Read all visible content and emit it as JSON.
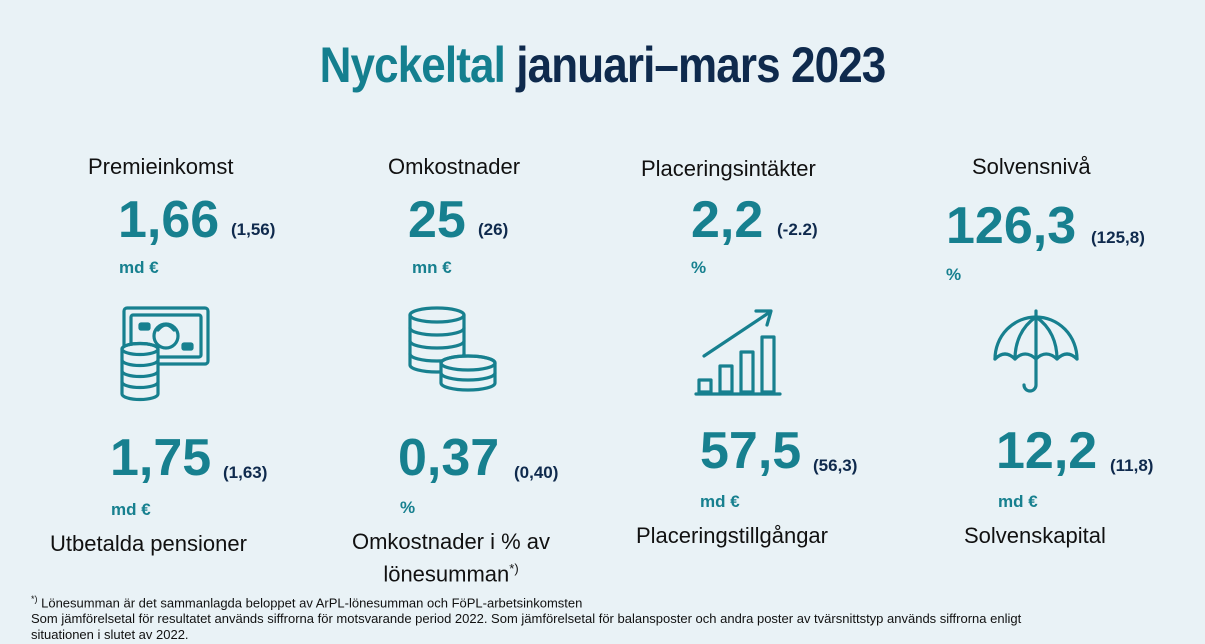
{
  "title": {
    "part1": "Nyckeltal",
    "part2": "januari–mars 2023"
  },
  "top_metrics": [
    {
      "label": "Premieinkomst",
      "value": "1,66",
      "comparison": "(1,56)",
      "unit": "md €"
    },
    {
      "label": "Omkostnader",
      "value": "25",
      "comparison": "(26)",
      "unit": "mn €"
    },
    {
      "label": "Placeringsintäkter",
      "value": "2,2",
      "comparison": "(-2.2)",
      "unit": "%"
    },
    {
      "label": "Solvensnivå",
      "value": "126,3",
      "comparison": "(125,8)",
      "unit": "%"
    }
  ],
  "bottom_metrics": [
    {
      "label": "Utbetalda pensioner",
      "value": "1,75",
      "comparison": "(1,63)",
      "unit": "md €"
    },
    {
      "label_line1": "Omkostnader i % av",
      "label_line2": "lönesumman",
      "label_sup": "*)",
      "value": "0,37",
      "comparison": "(0,40)",
      "unit": "%"
    },
    {
      "label": "Placeringstillgångar",
      "value": "57,5",
      "comparison": "(56,3)",
      "unit": "md €"
    },
    {
      "label": "Solvenskapital",
      "value": "12,2",
      "comparison": "(11,8)",
      "unit": "md €"
    }
  ],
  "icons": [
    "money-coins-icon",
    "coin-stacks-icon",
    "growth-chart-icon",
    "umbrella-icon"
  ],
  "footnotes": {
    "sup": "*)",
    "line1": " Lönesumman är det sammanlagda beloppet av ArPL-lönesumman och FöPL-arbetsinkomsten",
    "line2": "Som jämförelsetal för resultatet används siffrorna för motsvarande period 2022. Som jämförelsetal för balansposter och andra poster av tvärsnittstyp används siffrorna enligt",
    "line3": "situationen i slutet av 2022."
  },
  "colors": {
    "teal": "#17808f",
    "navy": "#0f2a4d",
    "background": "#e9f2f6"
  }
}
